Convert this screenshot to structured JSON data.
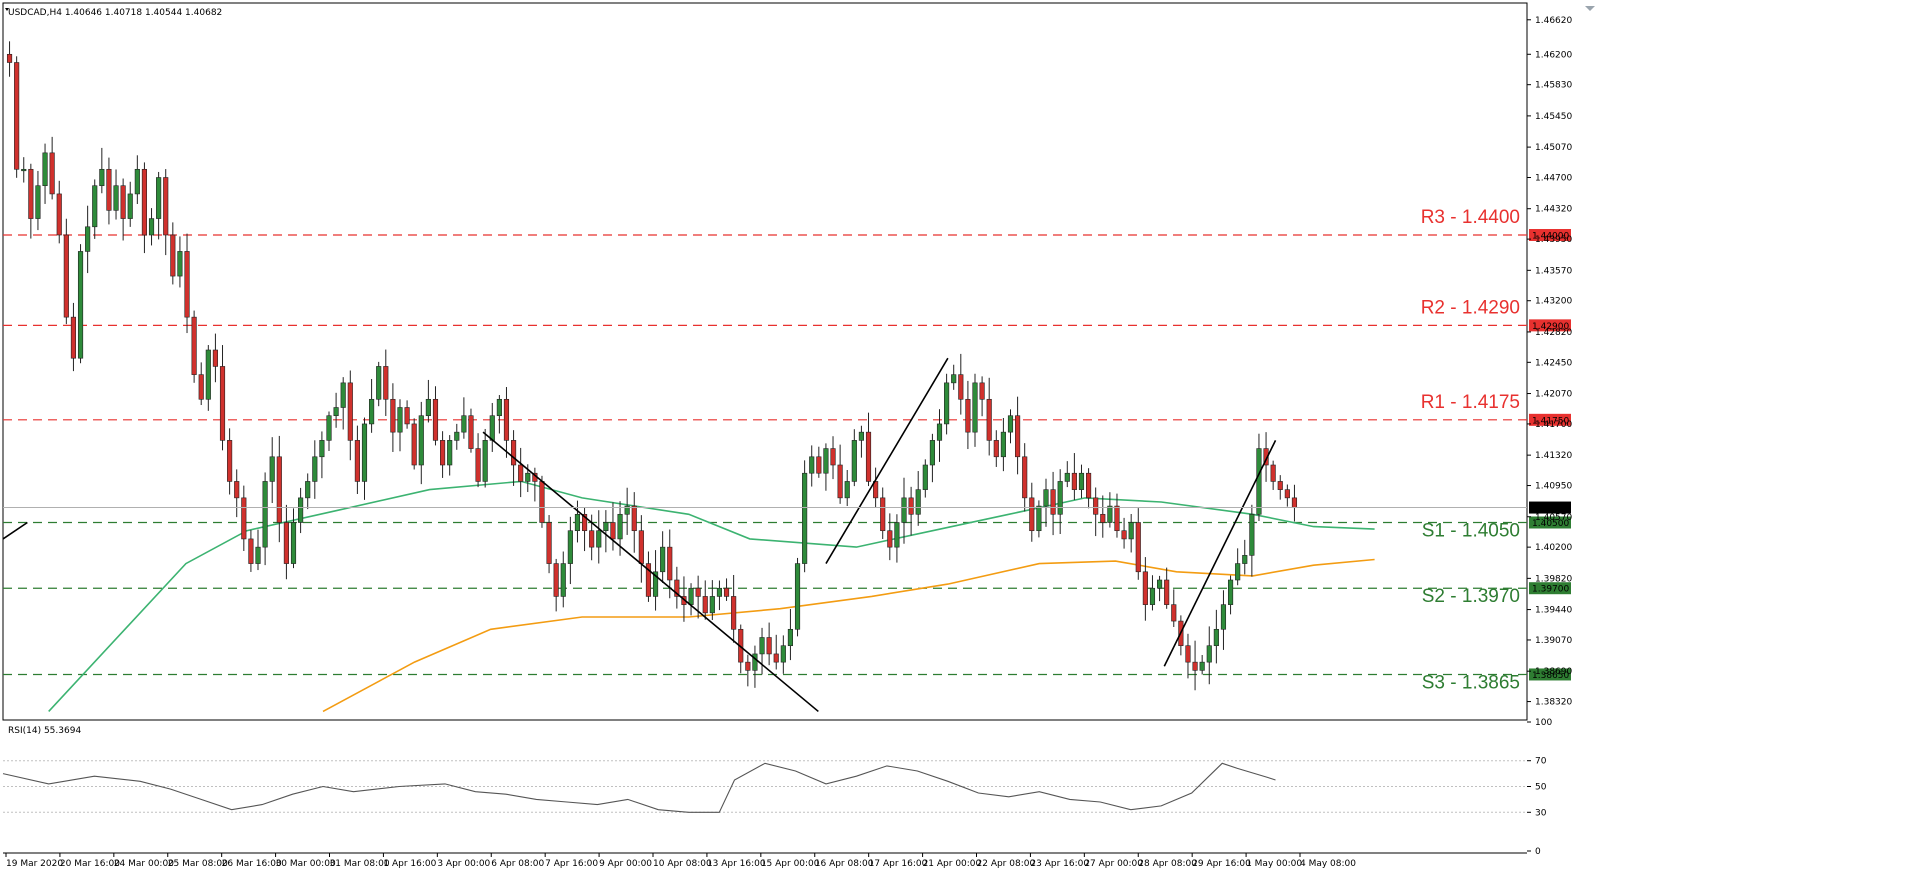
{
  "chart_data": {
    "type": "candlestick",
    "symbol_header": "USDCAD,H4  1.40646 1.40718 1.40544 1.40682",
    "current_price": "1.40682",
    "price_axis": {
      "range": [
        1.3812,
        1.468
      ],
      "ticks": [
        "1.46620",
        "1.46200",
        "1.45830",
        "1.45450",
        "1.45070",
        "1.44700",
        "1.44320",
        "1.43950",
        "1.43570",
        "1.43200",
        "1.42820",
        "1.42450",
        "1.42070",
        "1.41700",
        "1.41320",
        "1.40950",
        "1.40570",
        "1.40200",
        "1.39820",
        "1.39440",
        "1.39070",
        "1.38690",
        "1.38320"
      ]
    },
    "x_labels": [
      "19 Mar 2020",
      "20 Mar 16:00",
      "24 Mar 00:00",
      "25 Mar 08:00",
      "26 Mar 16:00",
      "30 Mar 00:00",
      "31 Mar 08:00",
      "1 Apr 16:00",
      "3 Apr 00:00",
      "6 Apr 08:00",
      "7 Apr 16:00",
      "9 Apr 00:00",
      "10 Apr 08:00",
      "13 Apr 16:00",
      "15 Apr 00:00",
      "16 Apr 08:00",
      "17 Apr 16:00",
      "21 Apr 00:00",
      "22 Apr 08:00",
      "23 Apr 16:00",
      "27 Apr 00:00",
      "28 Apr 08:00",
      "29 Apr 16:00",
      "1 May 00:00",
      "4 May 08:00"
    ],
    "levels": [
      {
        "label": "R3 - 1.4400",
        "value": 1.44,
        "tag": "1.44000",
        "color": "#e8312f",
        "kind": "resistance"
      },
      {
        "label": "R2 - 1.4290",
        "value": 1.429,
        "tag": "1.42900",
        "color": "#e8312f",
        "kind": "resistance"
      },
      {
        "label": "R1 - 1.4175",
        "value": 1.4175,
        "tag": "1.41750",
        "color": "#e8312f",
        "kind": "resistance"
      },
      {
        "label": "S1 - 1.4050",
        "value": 1.405,
        "tag": "1.40500",
        "color": "#2e7d32",
        "kind": "support"
      },
      {
        "label": "S2 - 1.3970",
        "value": 1.397,
        "tag": "1.39700",
        "color": "#2e7d32",
        "kind": "support"
      },
      {
        "label": "S3 - 1.3865",
        "value": 1.3865,
        "tag": "1.38650",
        "color": "#2e7d32",
        "kind": "support"
      }
    ],
    "ohlc_waypoints": [
      1.461,
      1.448,
      1.448,
      1.442,
      1.446,
      1.45,
      1.445,
      1.44,
      1.43,
      1.425,
      1.438,
      1.441,
      1.446,
      1.448,
      1.443,
      1.446,
      1.442,
      1.445,
      1.448,
      1.44,
      1.442,
      1.447,
      1.44,
      1.435,
      1.438,
      1.43,
      1.423,
      1.42,
      1.426,
      1.424,
      1.415,
      1.41,
      1.408,
      1.403,
      1.4,
      1.402,
      1.41,
      1.413,
      1.405,
      1.4,
      1.405,
      1.408,
      1.41,
      1.413,
      1.415,
      1.418,
      1.419,
      1.422,
      1.415,
      1.41,
      1.417,
      1.42,
      1.424,
      1.42,
      1.416,
      1.419,
      1.417,
      1.412,
      1.418,
      1.42,
      1.415,
      1.412,
      1.415,
      1.416,
      1.418,
      1.414,
      1.41,
      1.415,
      1.418,
      1.42,
      1.415,
      1.412,
      1.41,
      1.411,
      1.41,
      1.405,
      1.4,
      1.396,
      1.4,
      1.404,
      1.406,
      1.404,
      1.402,
      1.404,
      1.405,
      1.403,
      1.406,
      1.407,
      1.404,
      1.4,
      1.396,
      1.399,
      1.402,
      1.398,
      1.396,
      1.395,
      1.397,
      1.396,
      1.394,
      1.396,
      1.397,
      1.396,
      1.392,
      1.388,
      1.387,
      1.389,
      1.391,
      1.389,
      1.388,
      1.39,
      1.392,
      1.4,
      1.411,
      1.413,
      1.411,
      1.414,
      1.412,
      1.408,
      1.41,
      1.415,
      1.416,
      1.41,
      1.408,
      1.404,
      1.402,
      1.405,
      1.408,
      1.406,
      1.409,
      1.412,
      1.415,
      1.417,
      1.422,
      1.423,
      1.42,
      1.416,
      1.422,
      1.42,
      1.415,
      1.413,
      1.416,
      1.418,
      1.413,
      1.408,
      1.404,
      1.407,
      1.409,
      1.406,
      1.41,
      1.411,
      1.409,
      1.411,
      1.408,
      1.406,
      1.405,
      1.407,
      1.404,
      1.403,
      1.405,
      1.399,
      1.395,
      1.397,
      1.398,
      1.395,
      1.393,
      1.39,
      1.388,
      1.387,
      1.388,
      1.39,
      1.392,
      1.395,
      1.398,
      1.4,
      1.401,
      1.406,
      1.414,
      1.412,
      1.41,
      1.409,
      1.408,
      1.4068
    ],
    "ma_green_waypoints": [
      [
        0.03,
        1.382
      ],
      [
        0.08,
        1.392
      ],
      [
        0.12,
        1.4
      ],
      [
        0.16,
        1.404
      ],
      [
        0.22,
        1.4065
      ],
      [
        0.28,
        1.409
      ],
      [
        0.34,
        1.41
      ],
      [
        0.38,
        1.408
      ],
      [
        0.45,
        1.406
      ],
      [
        0.49,
        1.403
      ],
      [
        0.56,
        1.402
      ],
      [
        0.61,
        1.404
      ],
      [
        0.66,
        1.406
      ],
      [
        0.71,
        1.408
      ],
      [
        0.76,
        1.4075
      ],
      [
        0.82,
        1.406
      ],
      [
        0.86,
        1.4045
      ],
      [
        0.9,
        1.4042
      ]
    ],
    "ma_orange_waypoints": [
      [
        0.21,
        1.382
      ],
      [
        0.27,
        1.388
      ],
      [
        0.32,
        1.392
      ],
      [
        0.38,
        1.3935
      ],
      [
        0.45,
        1.3935
      ],
      [
        0.51,
        1.3945
      ],
      [
        0.57,
        1.396
      ],
      [
        0.62,
        1.3975
      ],
      [
        0.68,
        1.4
      ],
      [
        0.73,
        1.4003
      ],
      [
        0.77,
        1.399
      ],
      [
        0.82,
        1.3985
      ],
      [
        0.86,
        1.3998
      ],
      [
        0.9,
        1.4005
      ]
    ],
    "trendlines": [
      {
        "from": [
          0.0,
          1.403
        ],
        "to": [
          0.016,
          1.405
        ]
      },
      {
        "from": [
          0.315,
          1.416
        ],
        "to": [
          0.535,
          1.382
        ]
      },
      {
        "from": [
          0.54,
          1.4
        ],
        "to": [
          0.62,
          1.425
        ]
      },
      {
        "from": [
          0.762,
          1.3875
        ],
        "to": [
          0.835,
          1.415
        ]
      }
    ],
    "rsi": {
      "label": "RSI(14) 55.3694",
      "ticks": [
        "100",
        "70",
        "50",
        "30",
        "0"
      ],
      "levels": [
        70,
        50,
        30
      ],
      "waypoints": [
        [
          0.0,
          60
        ],
        [
          0.03,
          52
        ],
        [
          0.06,
          58
        ],
        [
          0.09,
          54
        ],
        [
          0.11,
          48
        ],
        [
          0.13,
          40
        ],
        [
          0.15,
          32
        ],
        [
          0.17,
          36
        ],
        [
          0.19,
          44
        ],
        [
          0.21,
          50
        ],
        [
          0.23,
          46
        ],
        [
          0.26,
          50
        ],
        [
          0.29,
          52
        ],
        [
          0.31,
          46
        ],
        [
          0.33,
          44
        ],
        [
          0.35,
          40
        ],
        [
          0.37,
          38
        ],
        [
          0.39,
          36
        ],
        [
          0.41,
          40
        ],
        [
          0.43,
          32
        ],
        [
          0.45,
          30
        ],
        [
          0.47,
          30
        ],
        [
          0.48,
          55
        ],
        [
          0.5,
          68
        ],
        [
          0.52,
          62
        ],
        [
          0.54,
          52
        ],
        [
          0.56,
          58
        ],
        [
          0.58,
          66
        ],
        [
          0.6,
          62
        ],
        [
          0.62,
          54
        ],
        [
          0.64,
          45
        ],
        [
          0.66,
          42
        ],
        [
          0.68,
          46
        ],
        [
          0.7,
          40
        ],
        [
          0.72,
          38
        ],
        [
          0.74,
          32
        ],
        [
          0.76,
          35
        ],
        [
          0.78,
          45
        ],
        [
          0.8,
          68
        ],
        [
          0.81,
          64
        ],
        [
          0.83,
          57
        ],
        [
          0.835,
          55
        ]
      ]
    }
  }
}
